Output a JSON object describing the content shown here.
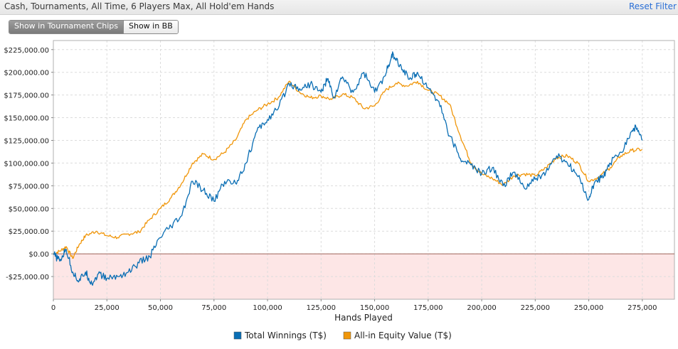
{
  "header": {
    "title": "Cash, Tournaments, All Time, 6 Players Max, All Hold'em Hands",
    "reset_label": "Reset Filter"
  },
  "toggle": {
    "chips_label": "Show in Tournament Chips",
    "bb_label": "Show in BB",
    "selected": "Show in Tournament Chips"
  },
  "chart_data": {
    "type": "line",
    "title": "",
    "xlabel": "Hands Played",
    "ylabel": "",
    "xlim": [
      0,
      290000
    ],
    "ylim": [
      -50000,
      235000
    ],
    "x_ticks": [
      0,
      25000,
      50000,
      75000,
      100000,
      125000,
      150000,
      175000,
      200000,
      225000,
      250000,
      275000
    ],
    "x_tick_labels": [
      "0",
      "25,000",
      "50,000",
      "75,000",
      "100,000",
      "125,000",
      "150,000",
      "175,000",
      "200,000",
      "225,000",
      "250,000",
      "275,000"
    ],
    "y_ticks": [
      -25000,
      0,
      25000,
      50000,
      75000,
      100000,
      125000,
      150000,
      175000,
      200000,
      225000
    ],
    "y_tick_labels": [
      "-$25,000.00",
      "$0.00",
      "$25,000.00",
      "$50,000.00",
      "$75,000.00",
      "$100,000.00",
      "$125,000.00",
      "$150,000.00",
      "$175,000.00",
      "$200,000.00",
      "$225,000.00"
    ],
    "grid": true,
    "negative_region_shaded": true,
    "legend_position": "bottom-center",
    "series": [
      {
        "name": "Total Winnings (T$)",
        "color": "#0a6eb4",
        "x": [
          0,
          3000,
          6000,
          9000,
          12000,
          15000,
          18000,
          21000,
          25000,
          30000,
          35000,
          40000,
          45000,
          50000,
          55000,
          60000,
          65000,
          70000,
          75000,
          80000,
          85000,
          90000,
          95000,
          100000,
          105000,
          110000,
          115000,
          120000,
          125000,
          128000,
          131000,
          135000,
          140000,
          145000,
          150000,
          155000,
          158000,
          160000,
          163000,
          167000,
          170000,
          175000,
          180000,
          185000,
          190000,
          195000,
          200000,
          205000,
          210000,
          215000,
          220000,
          225000,
          230000,
          235000,
          240000,
          245000,
          250000,
          253000,
          257000,
          260000,
          265000,
          270000,
          272000,
          275000
        ],
        "y": [
          0,
          -8000,
          5000,
          -20000,
          -30000,
          -20000,
          -33000,
          -22000,
          -27000,
          -25000,
          -20000,
          -10000,
          -3000,
          18000,
          30000,
          42000,
          80000,
          70000,
          58000,
          80000,
          78000,
          100000,
          135000,
          148000,
          160000,
          188000,
          182000,
          187000,
          178000,
          193000,
          172000,
          195000,
          178000,
          200000,
          178000,
          196000,
          220000,
          213000,
          203000,
          193000,
          200000,
          183000,
          168000,
          130000,
          105000,
          98000,
          88000,
          95000,
          75000,
          90000,
          72000,
          82000,
          90000,
          108000,
          100000,
          85000,
          60000,
          80000,
          85000,
          100000,
          112000,
          135000,
          140000,
          125000
        ]
      },
      {
        "name": "All-in Equity Value (T$)",
        "color": "#f0960a",
        "x": [
          0,
          3000,
          6000,
          9000,
          12000,
          15000,
          20000,
          25000,
          30000,
          35000,
          40000,
          45000,
          50000,
          55000,
          60000,
          65000,
          70000,
          75000,
          80000,
          85000,
          90000,
          95000,
          100000,
          105000,
          110000,
          115000,
          120000,
          125000,
          130000,
          135000,
          140000,
          145000,
          150000,
          155000,
          160000,
          165000,
          170000,
          175000,
          180000,
          185000,
          190000,
          195000,
          200000,
          205000,
          210000,
          215000,
          220000,
          225000,
          230000,
          235000,
          240000,
          245000,
          250000,
          255000,
          260000,
          265000,
          270000,
          275000
        ],
        "y": [
          0,
          3000,
          8000,
          -5000,
          10000,
          20000,
          25000,
          20000,
          18000,
          22000,
          24000,
          38000,
          50000,
          62000,
          78000,
          100000,
          110000,
          104000,
          112000,
          125000,
          148000,
          158000,
          165000,
          172000,
          190000,
          178000,
          172000,
          174000,
          170000,
          176000,
          172000,
          160000,
          163000,
          180000,
          188000,
          185000,
          190000,
          180000,
          175000,
          165000,
          130000,
          100000,
          88000,
          83000,
          76000,
          86000,
          88000,
          86000,
          95000,
          106000,
          108000,
          100000,
          80000,
          85000,
          95000,
          108000,
          114000,
          115000
        ]
      }
    ]
  }
}
